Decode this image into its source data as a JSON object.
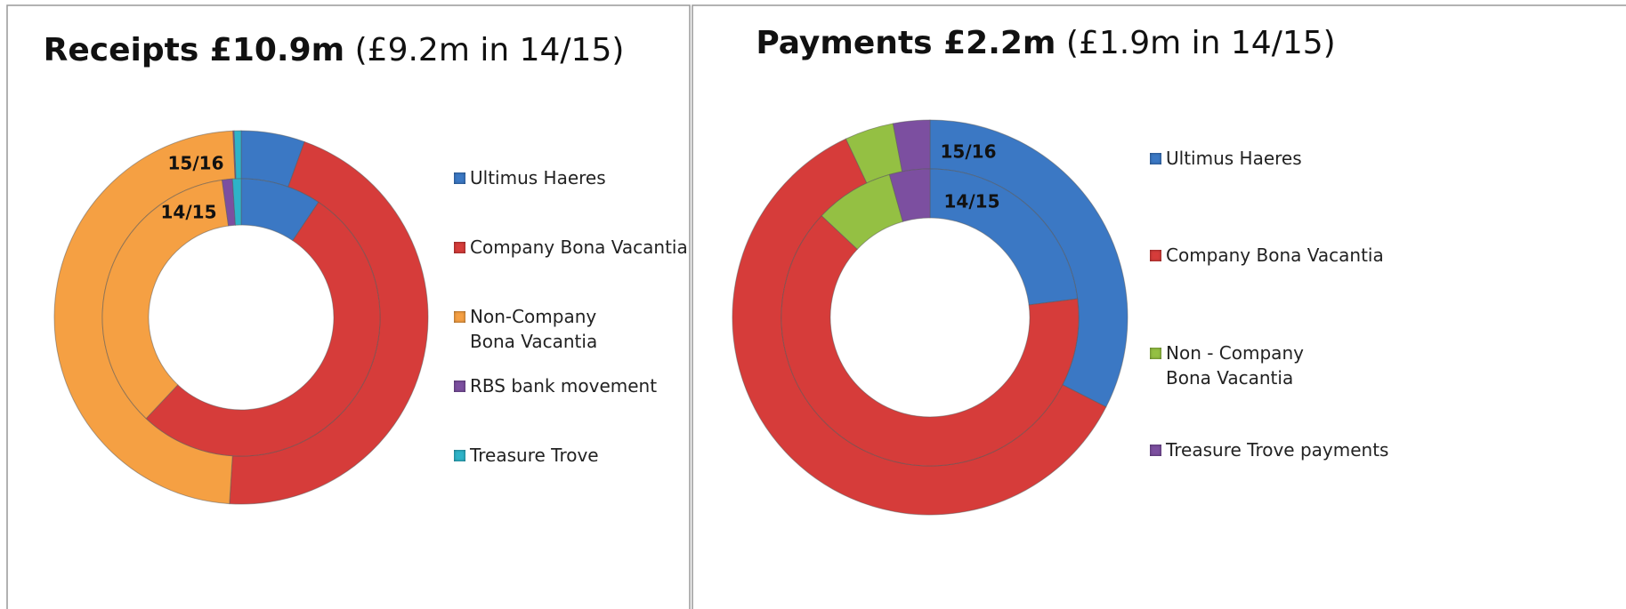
{
  "chart_data": [
    {
      "type": "doughnut",
      "title": "Receipts £10.9m",
      "subtitle": "(£9.2m in 14/15)",
      "categories": [
        "Ultimus Haeres",
        "Company Bona Vacantia",
        "Non-Company Bona Vacantia",
        "RBS bank movement",
        "Treasure Trove"
      ],
      "colors": [
        "#3b78c4",
        "#d63c3a",
        "#f5a043",
        "#7c4fa0",
        "#2eb3c8"
      ],
      "series": [
        {
          "name": "15/16",
          "values": [
            5.5,
            45.5,
            48.3,
            0.1,
            0.6
          ]
        },
        {
          "name": "14/15",
          "values": [
            9.4,
            52.6,
            35.8,
            1.2,
            1.0
          ]
        }
      ]
    },
    {
      "type": "doughnut",
      "title": "Payments £2.2m",
      "subtitle": "(£1.9m in 14/15)",
      "categories": [
        "Ultimus Haeres",
        "Company Bona Vacantia",
        "Non - Company Bona Vacantia",
        "Treasure Trove payments"
      ],
      "colors": [
        "#3b78c4",
        "#d63c3a",
        "#94c043",
        "#7c4fa0"
      ],
      "series": [
        {
          "name": "15/16",
          "values": [
            32.5,
            60.5,
            4.0,
            3.0
          ]
        },
        {
          "name": "14/15",
          "values": [
            23.0,
            64.0,
            8.6,
            4.4
          ]
        }
      ]
    }
  ]
}
